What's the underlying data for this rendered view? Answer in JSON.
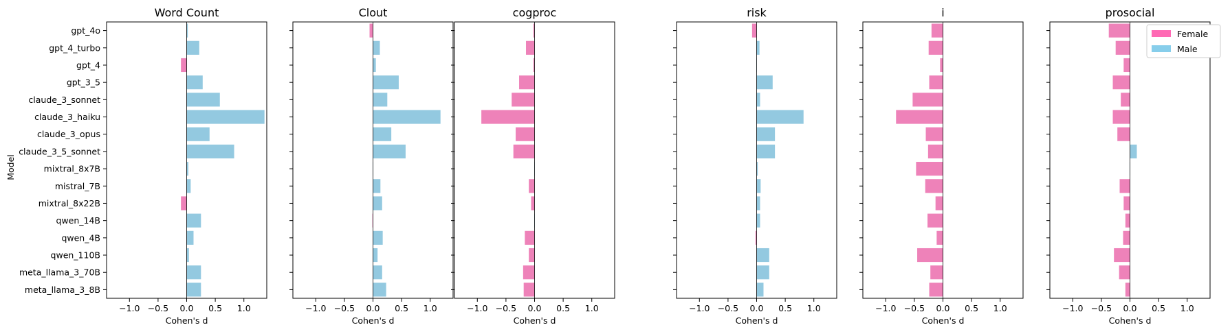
{
  "chart_data": {
    "type": "bar",
    "orientation": "horizontal",
    "ylabel": "Model",
    "xlabel": "Cohen's d",
    "xlim": [
      -1.4,
      1.4
    ],
    "xticks": [
      -1.0,
      -0.5,
      0.0,
      0.5,
      1.0
    ],
    "xtick_labels": [
      "−1.0",
      "−0.5",
      "0.0",
      "0.5",
      "1.0"
    ],
    "categories": [
      "gpt_4o",
      "gpt_4_turbo",
      "gpt_4",
      "gpt_3_5",
      "claude_3_sonnet",
      "claude_3_haiku",
      "claude_3_opus",
      "claude_3_5_sonnet",
      "mixtral_8x7B",
      "mistral_7B",
      "mixtral_8x22B",
      "qwen_14B",
      "qwen_4B",
      "qwen_110B",
      "meta_llama_3_70B",
      "meta_llama_3_8B"
    ],
    "legend": {
      "placement": "upper-right",
      "entries": [
        {
          "label": "Female",
          "color": "#ff69b4"
        },
        {
          "label": "Male",
          "color": "#87ceeb"
        }
      ]
    },
    "colors": {
      "female_bar": "#ee82b9",
      "male_bar": "#93c9e0"
    },
    "panels": [
      {
        "title": "Word Count",
        "values": [
          0.02,
          0.22,
          -0.1,
          0.28,
          0.58,
          1.36,
          0.4,
          0.83,
          0.03,
          0.07,
          -0.1,
          0.25,
          0.12,
          0.04,
          0.25,
          0.25
        ]
      },
      {
        "title": "Clout",
        "values": [
          -0.06,
          0.12,
          0.05,
          0.45,
          0.25,
          1.18,
          0.32,
          0.57,
          0.0,
          0.13,
          0.16,
          -0.01,
          0.17,
          0.08,
          0.16,
          0.23
        ]
      },
      {
        "title": "cogproc",
        "values": [
          -0.02,
          -0.15,
          -0.02,
          -0.27,
          -0.4,
          -0.93,
          -0.33,
          -0.37,
          0.0,
          -0.1,
          -0.06,
          0.0,
          -0.17,
          -0.1,
          -0.2,
          -0.19
        ]
      },
      {
        "title": "risk",
        "values": [
          -0.08,
          0.05,
          0.0,
          0.28,
          0.06,
          0.82,
          0.32,
          0.32,
          0.02,
          0.07,
          0.06,
          0.06,
          -0.02,
          0.22,
          0.22,
          0.12
        ]
      },
      {
        "title": "i",
        "values": [
          -0.2,
          -0.25,
          -0.05,
          -0.24,
          -0.53,
          -0.82,
          -0.3,
          -0.26,
          -0.47,
          -0.31,
          -0.13,
          -0.27,
          -0.11,
          -0.45,
          -0.22,
          -0.24
        ]
      },
      {
        "title": "prosocial",
        "values": [
          -0.37,
          -0.25,
          -0.11,
          -0.3,
          -0.16,
          -0.3,
          -0.22,
          0.12,
          0.0,
          -0.18,
          -0.11,
          -0.08,
          -0.12,
          -0.28,
          -0.19,
          -0.08
        ]
      }
    ]
  }
}
